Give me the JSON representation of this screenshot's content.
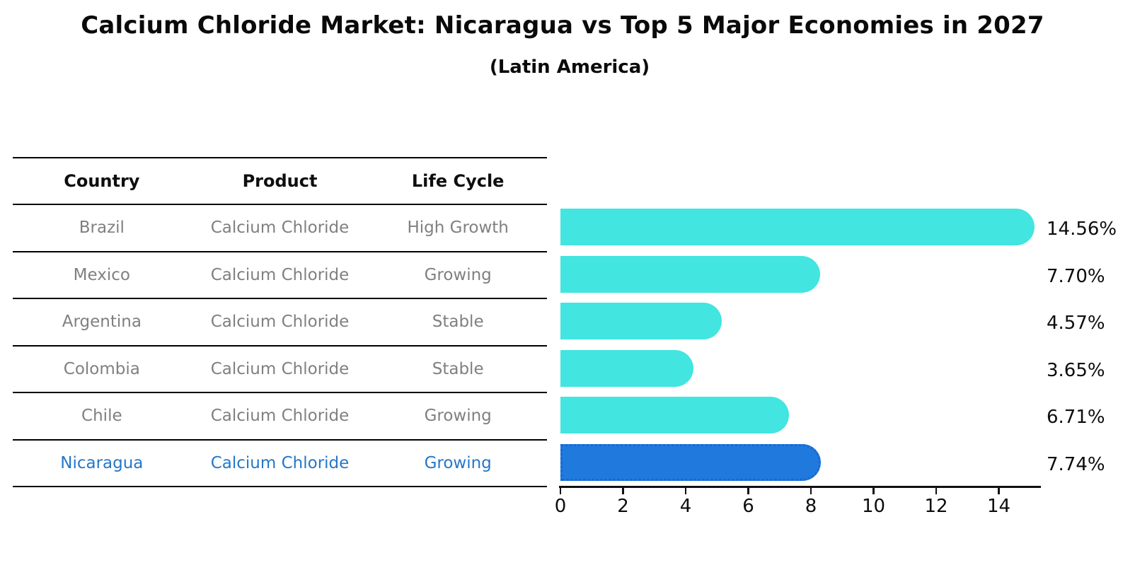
{
  "header": {
    "title": "Calcium Chloride Market: Nicaragua vs Top 5 Major Economies in 2027",
    "subtitle": "(Latin America)"
  },
  "table": {
    "headers": [
      "Country",
      "Product",
      "Life Cycle"
    ],
    "rows": [
      {
        "country": "Brazil",
        "product": "Calcium Chloride",
        "life_cycle": "High Growth",
        "highlighted": false
      },
      {
        "country": "Mexico",
        "product": "Calcium Chloride",
        "life_cycle": "Growing",
        "highlighted": false
      },
      {
        "country": "Argentina",
        "product": "Calcium Chloride",
        "life_cycle": "Stable",
        "highlighted": false
      },
      {
        "country": "Colombia",
        "product": "Calcium Chloride",
        "life_cycle": "Stable",
        "highlighted": false
      },
      {
        "country": "Chile",
        "product": "Calcium Chloride",
        "life_cycle": "Growing",
        "highlighted": false
      },
      {
        "country": "Nicaragua",
        "product": "Calcium Chloride",
        "life_cycle": "Growing",
        "highlighted": true
      }
    ]
  },
  "chart_data": {
    "type": "bar",
    "orientation": "horizontal",
    "title": "Calcium Chloride Market: Nicaragua vs Top 5 Major Economies in 2027",
    "subtitle": "(Latin America)",
    "categories": [
      "Brazil",
      "Mexico",
      "Argentina",
      "Colombia",
      "Chile",
      "Nicaragua"
    ],
    "values": [
      14.56,
      7.7,
      4.57,
      3.65,
      6.71,
      7.74
    ],
    "value_labels": [
      "14.56%",
      "7.70%",
      "4.57%",
      "3.65%",
      "6.71%",
      "7.74%"
    ],
    "xlabel": "",
    "ylabel": "",
    "xlim": [
      0,
      15.3
    ],
    "xticks": [
      0,
      2,
      4,
      6,
      8,
      10,
      12,
      14
    ],
    "grid": false,
    "legend": "none",
    "highlight_index": 5,
    "highlight_category": "Nicaragua",
    "colors": {
      "bar": "#42e5e0",
      "highlight_bar": "#2079dc",
      "highlight_bar_edge": "#1668d2",
      "highlight_text": "#2577c9",
      "table_text": "#808080",
      "axis": "#101010"
    }
  }
}
